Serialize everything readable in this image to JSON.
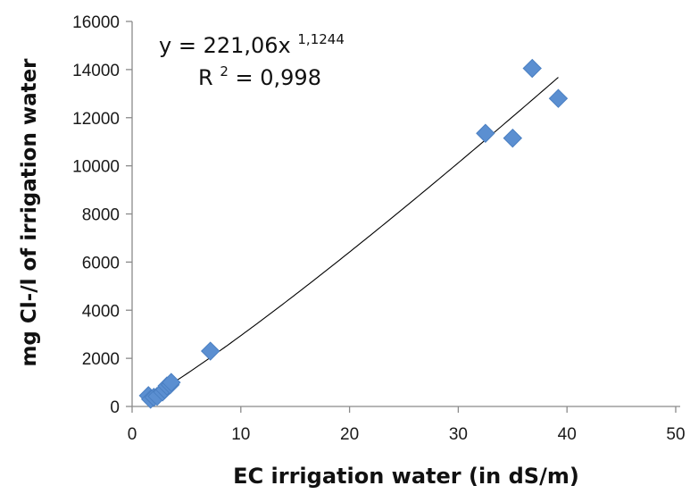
{
  "chart_data": {
    "type": "scatter",
    "xlabel": "EC irrigation water (in dS/m)",
    "ylabel": "mg Cl-/l of irrigation water",
    "xlim": [
      0,
      50
    ],
    "ylim": [
      0,
      16000
    ],
    "x_ticks": [
      "0",
      "10",
      "20",
      "30",
      "40",
      "50"
    ],
    "y_ticks": [
      "0",
      "2000",
      "4000",
      "6000",
      "8000",
      "10000",
      "12000",
      "14000",
      "16000"
    ],
    "grid": false,
    "legend": "none",
    "marker_color": "#5b8fd1",
    "series": [
      {
        "points": [
          {
            "x": 1.5,
            "y": 450
          },
          {
            "x": 1.7,
            "y": 300
          },
          {
            "x": 2.0,
            "y": 380
          },
          {
            "x": 2.3,
            "y": 420
          },
          {
            "x": 2.8,
            "y": 600
          },
          {
            "x": 3.0,
            "y": 700
          },
          {
            "x": 3.2,
            "y": 850
          },
          {
            "x": 3.5,
            "y": 900
          },
          {
            "x": 3.6,
            "y": 1000
          },
          {
            "x": 7.2,
            "y": 2300
          },
          {
            "x": 32.5,
            "y": 11350
          },
          {
            "x": 35.0,
            "y": 11150
          },
          {
            "x": 36.8,
            "y": 14050
          },
          {
            "x": 39.2,
            "y": 12800
          }
        ]
      }
    ],
    "trendline": {
      "kind": "power",
      "a": 221.06,
      "b": 1.1244,
      "x_range": [
        1.6,
        39.2
      ],
      "equation_prefix": "y = 221,06x",
      "equation_exponent": "1,1244",
      "r2_prefix": "R",
      "r2_sup": "2",
      "r2_value": " = 0,998"
    }
  }
}
